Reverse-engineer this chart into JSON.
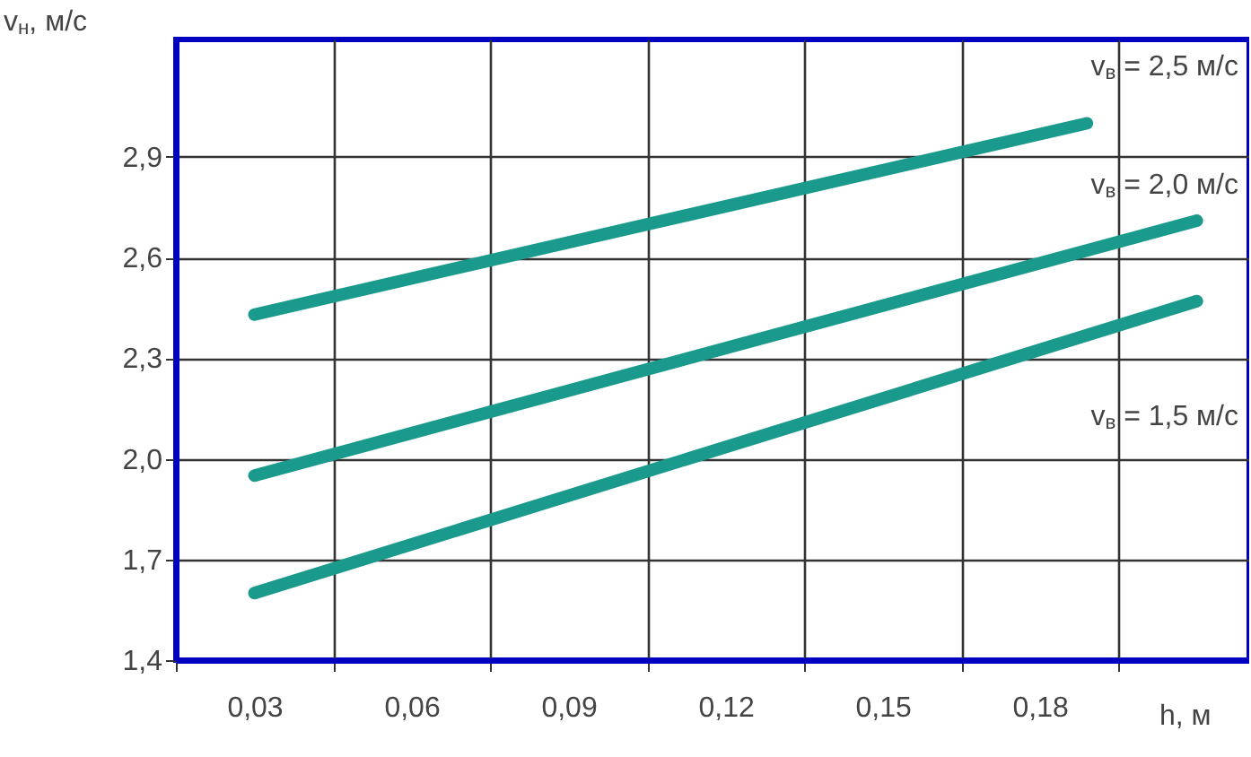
{
  "chart_data": {
    "type": "line",
    "xlabel": "h, м",
    "ylabel": "v$_{н}$, м/с",
    "xlim": [
      0.015,
      0.22
    ],
    "ylim": [
      1.4,
      3.25
    ],
    "xticks": [
      {
        "value": 0.015,
        "label": null
      },
      {
        "value": 0.03,
        "label": "0,03"
      },
      {
        "value": 0.045,
        "label": null
      },
      {
        "value": 0.06,
        "label": "0,06"
      },
      {
        "value": 0.075,
        "label": null
      },
      {
        "value": 0.09,
        "label": "0,09"
      },
      {
        "value": 0.105,
        "label": null
      },
      {
        "value": 0.12,
        "label": "0,12"
      },
      {
        "value": 0.135,
        "label": null
      },
      {
        "value": 0.15,
        "label": "0,15"
      },
      {
        "value": 0.165,
        "label": null
      },
      {
        "value": 0.18,
        "label": "0,18"
      },
      {
        "value": 0.195,
        "label": null
      }
    ],
    "yticks": [
      {
        "value": 1.4,
        "label": "1,4"
      },
      {
        "value": 1.7,
        "label": "1,7"
      },
      {
        "value": 2.0,
        "label": "2,0"
      },
      {
        "value": 2.3,
        "label": "2,3"
      },
      {
        "value": 2.6,
        "label": "2,6"
      },
      {
        "value": 2.9,
        "label": "2,9"
      }
    ],
    "grid": true,
    "series": [
      {
        "name": "v$_{в}$ = 2,5 м/с",
        "color": "#1a9a8c",
        "x": [
          0.03,
          0.189
        ],
        "values": [
          2.43,
          3.0
        ]
      },
      {
        "name": "v$_{в}$ = 2,0 м/с",
        "color": "#1a9a8c",
        "x": [
          0.03,
          0.21
        ],
        "values": [
          1.95,
          2.71
        ]
      },
      {
        "name": "v$_{в}$ = 1,5 м/с",
        "color": "#1a9a8c",
        "x": [
          0.03,
          0.21
        ],
        "values": [
          1.6,
          2.47
        ]
      }
    ]
  }
}
